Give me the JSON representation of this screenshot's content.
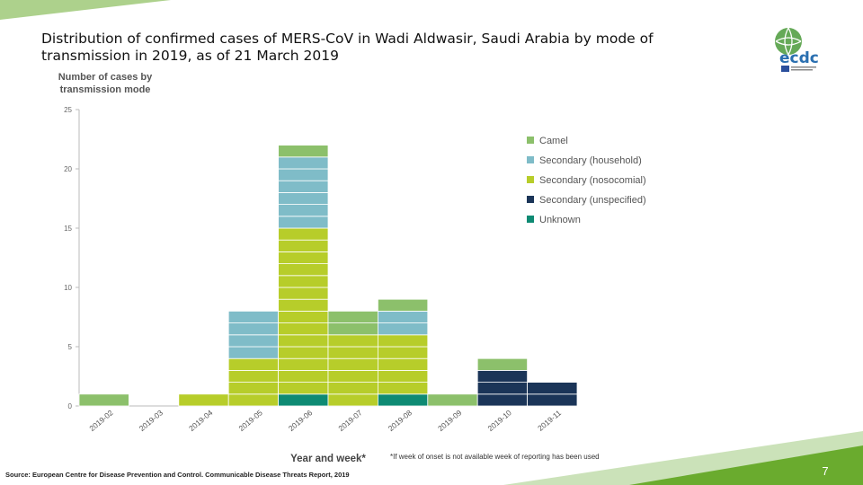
{
  "slide": {
    "title": "Distribution of confirmed cases of MERS-CoV in Wadi Aldwasir, Saudi Arabia by mode of transmission in 2019, as of 21 March 2019",
    "source": "Source: European Centre for Disease Prevention and Control. Communicable Disease Threats Report, 2019",
    "footnote": "*If week of onset is not available week of reporting has been used",
    "page_number": "7",
    "logo_text": "ecdc",
    "logo_icon": "ecdc-globe-logo-icon"
  },
  "colors": {
    "camel": "#8cc06b",
    "secondary_household": "#7fbcc8",
    "secondary_nosocomial": "#b7cd2a",
    "secondary_unspecified": "#1b3558",
    "unknown": "#0e8a73",
    "accent_green": "#6aab2e",
    "axis": "#bbbbbb"
  },
  "chart_data": {
    "type": "bar",
    "stacked": true,
    "ylabel": "Number of cases by transmission mode",
    "xlabel": "Year and week*",
    "ylim": [
      0,
      25
    ],
    "yticks": [
      0,
      5,
      10,
      15,
      20,
      25
    ],
    "legend_position": "right",
    "categories": [
      "2019-02",
      "2019-03",
      "2019-04",
      "2019-05",
      "2019-06",
      "2019-07",
      "2019-08",
      "2019-09",
      "2019-10",
      "2019-11"
    ],
    "series": [
      {
        "name": "Unknown",
        "color_key": "unknown",
        "values": [
          0,
          0,
          0,
          0,
          1,
          0,
          1,
          0,
          0,
          0
        ]
      },
      {
        "name": "Secondary (unspecified)",
        "color_key": "secondary_unspecified",
        "values": [
          0,
          0,
          0,
          0,
          0,
          0,
          0,
          0,
          3,
          2
        ]
      },
      {
        "name": "Secondary (nosocomial)",
        "color_key": "secondary_nosocomial",
        "values": [
          0,
          0,
          1,
          4,
          14,
          6,
          5,
          0,
          0,
          0
        ]
      },
      {
        "name": "Secondary (household)",
        "color_key": "secondary_household",
        "values": [
          0,
          0,
          0,
          4,
          6,
          0,
          2,
          0,
          0,
          0
        ]
      },
      {
        "name": "Camel",
        "color_key": "camel",
        "values": [
          1,
          0,
          0,
          0,
          1,
          2,
          1,
          1,
          1,
          0
        ]
      }
    ],
    "legend_order": [
      "Camel",
      "Secondary (household)",
      "Secondary (nosocomial)",
      "Secondary (unspecified)",
      "Unknown"
    ]
  }
}
